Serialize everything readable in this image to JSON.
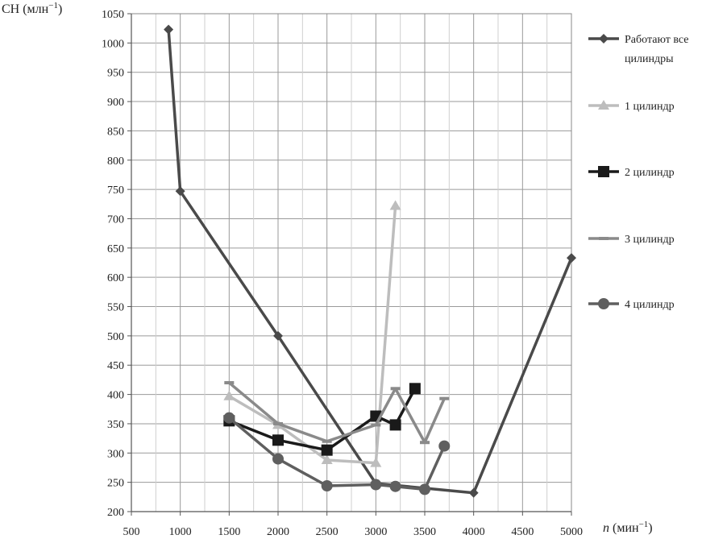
{
  "chart_data": {
    "type": "line",
    "ylabel": "CH (млн⁻¹)",
    "xlabel": "n (мин⁻¹)",
    "xlim": [
      500,
      5000
    ],
    "ylim": [
      200,
      1050
    ],
    "x_ticks": [
      500,
      1000,
      1500,
      2000,
      2500,
      3000,
      3500,
      4000,
      4500,
      5000
    ],
    "y_ticks": [
      200,
      250,
      300,
      350,
      400,
      450,
      500,
      550,
      600,
      650,
      700,
      750,
      800,
      850,
      900,
      950,
      1000,
      1050
    ],
    "grid": true,
    "legend_position": "right",
    "series": [
      {
        "name": "Работают все цилиндры",
        "legend_lines": [
          "Работают все",
          "цилиндры"
        ],
        "color": "#4a4a4a",
        "marker": "diamond",
        "points": [
          [
            880,
            1023
          ],
          [
            1000,
            747
          ],
          [
            2000,
            500
          ],
          [
            3000,
            248
          ],
          [
            4000,
            232
          ],
          [
            5000,
            633
          ]
        ]
      },
      {
        "name": "1 цилиндр",
        "legend_lines": [
          "1 цилиндр"
        ],
        "color": "#bdbdbd",
        "marker": "triangle",
        "points": [
          [
            1500,
            397
          ],
          [
            2000,
            348
          ],
          [
            2500,
            288
          ],
          [
            3000,
            283
          ],
          [
            3200,
            722
          ]
        ]
      },
      {
        "name": "2 цилиндр",
        "legend_lines": [
          "2 цилиндр"
        ],
        "color": "#1a1a1a",
        "marker": "square",
        "points": [
          [
            1500,
            355
          ],
          [
            2000,
            322
          ],
          [
            2500,
            305
          ],
          [
            3000,
            363
          ],
          [
            3200,
            348
          ],
          [
            3400,
            410
          ]
        ]
      },
      {
        "name": "3 цилиндр",
        "legend_lines": [
          "3 цилиндр"
        ],
        "color": "#8a8a8a",
        "marker": "dash",
        "points": [
          [
            1500,
            420
          ],
          [
            2000,
            350
          ],
          [
            2500,
            320
          ],
          [
            3000,
            348
          ],
          [
            3200,
            410
          ],
          [
            3500,
            318
          ],
          [
            3700,
            393
          ]
        ]
      },
      {
        "name": "4 цилиндр",
        "legend_lines": [
          "4 цилиндр"
        ],
        "color": "#5f5f5f",
        "marker": "circle",
        "points": [
          [
            1500,
            360
          ],
          [
            2000,
            290
          ],
          [
            2500,
            244
          ],
          [
            3000,
            246
          ],
          [
            3200,
            243
          ],
          [
            3500,
            238
          ],
          [
            3700,
            312
          ]
        ]
      }
    ]
  }
}
